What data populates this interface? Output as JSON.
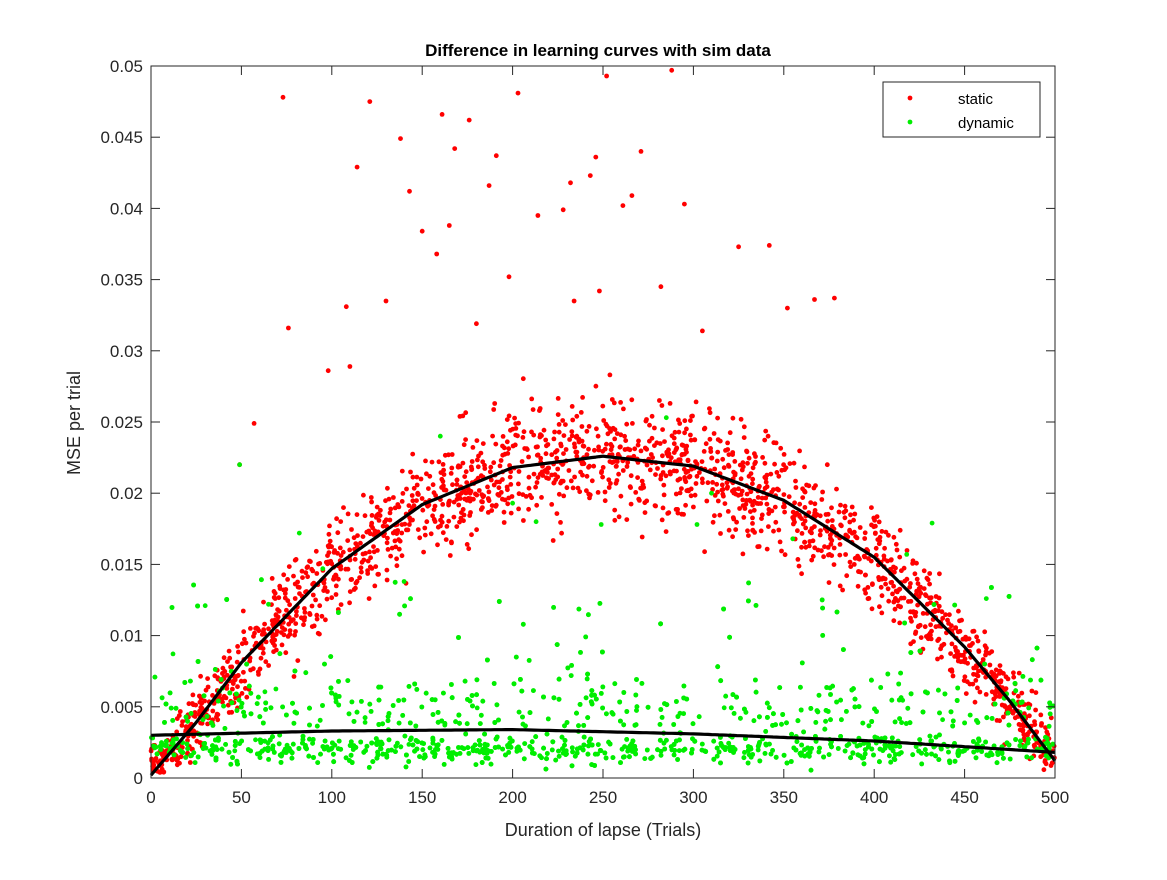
{
  "chart_data": {
    "type": "scatter",
    "title": "Difference in learning curves with sim data",
    "xlabel": "Duration of lapse (Trials)",
    "ylabel": "MSE per trial",
    "xlim": [
      0,
      500
    ],
    "ylim": [
      0,
      0.05
    ],
    "x_ticks": [
      0,
      50,
      100,
      150,
      200,
      250,
      300,
      350,
      400,
      450,
      500
    ],
    "x_tick_labels": [
      "0",
      "50",
      "100",
      "150",
      "200",
      "250",
      "300",
      "350",
      "400",
      "450",
      "500"
    ],
    "y_ticks": [
      0,
      0.005,
      0.01,
      0.015,
      0.02,
      0.025,
      0.03,
      0.035,
      0.04,
      0.045,
      0.05
    ],
    "y_tick_labels": [
      "0",
      "0.005",
      "0.01",
      "0.015",
      "0.02",
      "0.025",
      "0.03",
      "0.035",
      "0.04",
      "0.045",
      "0.05"
    ],
    "grid": false,
    "legend_position": "top-right",
    "series": [
      {
        "name": "static",
        "color": "#ff0000",
        "marker": "dot",
        "points": [
          [
            73,
            0.0478
          ],
          [
            161,
            0.0466
          ],
          [
            108,
            0.0331
          ],
          [
            121,
            0.0475
          ],
          [
            138,
            0.0449
          ],
          [
            143,
            0.0412
          ],
          [
            168,
            0.0442
          ],
          [
            176,
            0.0462
          ],
          [
            191,
            0.0437
          ],
          [
            203,
            0.0481
          ],
          [
            187,
            0.0416
          ],
          [
            232,
            0.0418
          ],
          [
            243,
            0.0423
          ],
          [
            246,
            0.0436
          ],
          [
            252,
            0.0493
          ],
          [
            271,
            0.044
          ],
          [
            288,
            0.0497
          ],
          [
            295,
            0.0403
          ],
          [
            266,
            0.0409
          ],
          [
            261,
            0.0402
          ],
          [
            228,
            0.0399
          ],
          [
            214,
            0.0395
          ],
          [
            198,
            0.0352
          ],
          [
            165,
            0.0388
          ],
          [
            158,
            0.0368
          ],
          [
            150,
            0.0384
          ],
          [
            130,
            0.0335
          ],
          [
            114,
            0.0429
          ],
          [
            76,
            0.0316
          ],
          [
            57,
            0.0249
          ],
          [
            49,
            0.022
          ],
          [
            325,
            0.0373
          ],
          [
            342,
            0.0374
          ],
          [
            367,
            0.0336
          ],
          [
            378,
            0.0337
          ],
          [
            352,
            0.033
          ],
          [
            305,
            0.0314
          ],
          [
            180,
            0.0319
          ],
          [
            234,
            0.0335
          ],
          [
            248,
            0.0342
          ],
          [
            282,
            0.0345
          ],
          [
            110,
            0.0289
          ],
          [
            98,
            0.0286
          ]
        ],
        "curve": [
          [
            0,
            0.0002
          ],
          [
            25,
            0.0039
          ],
          [
            50,
            0.0081
          ],
          [
            100,
            0.0147
          ],
          [
            150,
            0.0192
          ],
          [
            200,
            0.0218
          ],
          [
            250,
            0.0226
          ],
          [
            300,
            0.0219
          ],
          [
            350,
            0.0195
          ],
          [
            400,
            0.0155
          ],
          [
            450,
            0.0092
          ],
          [
            475,
            0.0054
          ],
          [
            500,
            0.0012
          ]
        ]
      },
      {
        "name": "dynamic",
        "color": "#00ee00",
        "marker": "dot",
        "points": [
          [
            49,
            0.022
          ],
          [
            160,
            0.024
          ],
          [
            285,
            0.0253
          ],
          [
            310,
            0.02
          ],
          [
            82,
            0.0172
          ],
          [
            95,
            0.0147
          ],
          [
            200,
            0.0193
          ],
          [
            213,
            0.018
          ],
          [
            249,
            0.0178
          ],
          [
            302,
            0.0178
          ],
          [
            355,
            0.0168
          ],
          [
            418,
            0.0157
          ],
          [
            432,
            0.0179
          ],
          [
            462,
            0.0126
          ],
          [
            30,
            0.0121
          ],
          [
            65,
            0.0122
          ],
          [
            140,
            0.0138
          ]
        ],
        "curve": [
          [
            0,
            0.003
          ],
          [
            100,
            0.0033
          ],
          [
            200,
            0.0034
          ],
          [
            300,
            0.0031
          ],
          [
            400,
            0.0026
          ],
          [
            500,
            0.0018
          ]
        ]
      }
    ]
  }
}
